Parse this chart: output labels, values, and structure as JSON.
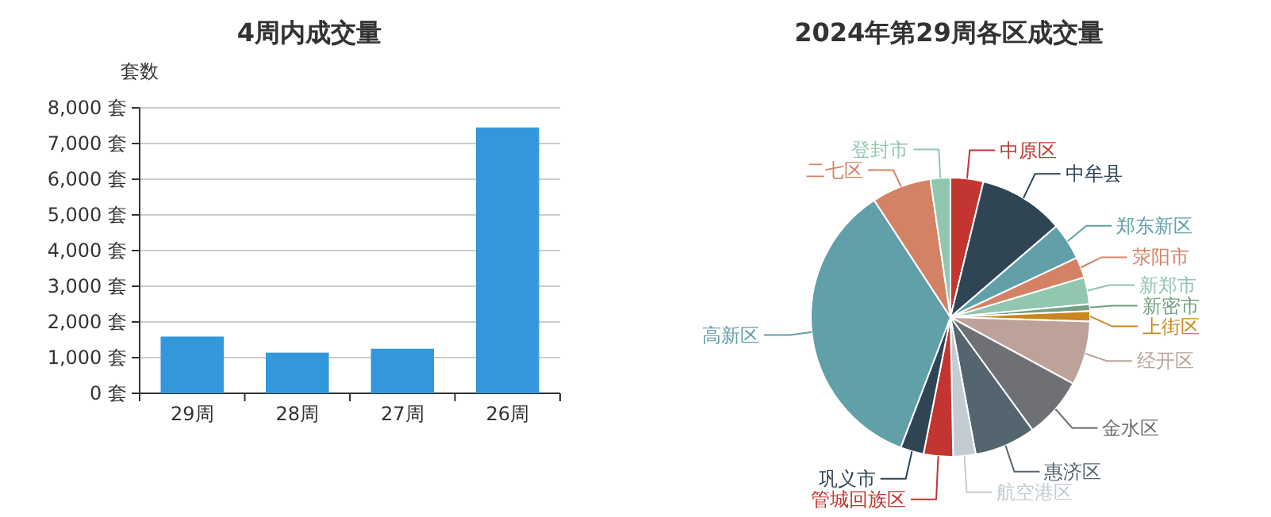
{
  "chart_data": [
    {
      "type": "bar",
      "title": "4周内成交量",
      "ylabel": "套数",
      "categories": [
        "29周",
        "28周",
        "27周",
        "26周"
      ],
      "values": [
        1590,
        1140,
        1250,
        7450
      ],
      "color": "#3398db",
      "ylim": [
        0,
        8000
      ],
      "yticks": [
        {
          "value": 0,
          "label": "0 套"
        },
        {
          "value": 1000,
          "label": "1,000 套"
        },
        {
          "value": 2000,
          "label": "2,000 套"
        },
        {
          "value": 3000,
          "label": "3,000 套"
        },
        {
          "value": 4000,
          "label": "4,000 套"
        },
        {
          "value": 5000,
          "label": "5,000 套"
        },
        {
          "value": 6000,
          "label": "6,000 套"
        },
        {
          "value": 7000,
          "label": "7,000 套"
        },
        {
          "value": 8000,
          "label": "8,000 套"
        }
      ],
      "grid": "y"
    },
    {
      "type": "pie",
      "title": "2024年第29周各区成交量",
      "categories": [
        "中原区",
        "中牟县",
        "郑东新区",
        "荥阳市",
        "新郑市",
        "新密市",
        "上街区",
        "经开区",
        "金水区",
        "惠济区",
        "航空港区",
        "管城回族区",
        "巩义市",
        "高新区",
        "二七区",
        "登封市"
      ],
      "values": [
        3.8,
        9.9,
        4.3,
        2.4,
        3.1,
        0.8,
        1.2,
        7.4,
        7.1,
        7.1,
        2.6,
        3.4,
        2.7,
        35.0,
        6.9,
        2.3
      ],
      "colors": [
        "#c23531",
        "#2f4554",
        "#61a0a8",
        "#d48265",
        "#91c7ae",
        "#749f83",
        "#ca8622",
        "#bda29a",
        "#6e7074",
        "#546570",
        "#c4ccd3",
        "#c23531",
        "#2f4554",
        "#61a0a8",
        "#d48265",
        "#91c7ae"
      ]
    }
  ]
}
